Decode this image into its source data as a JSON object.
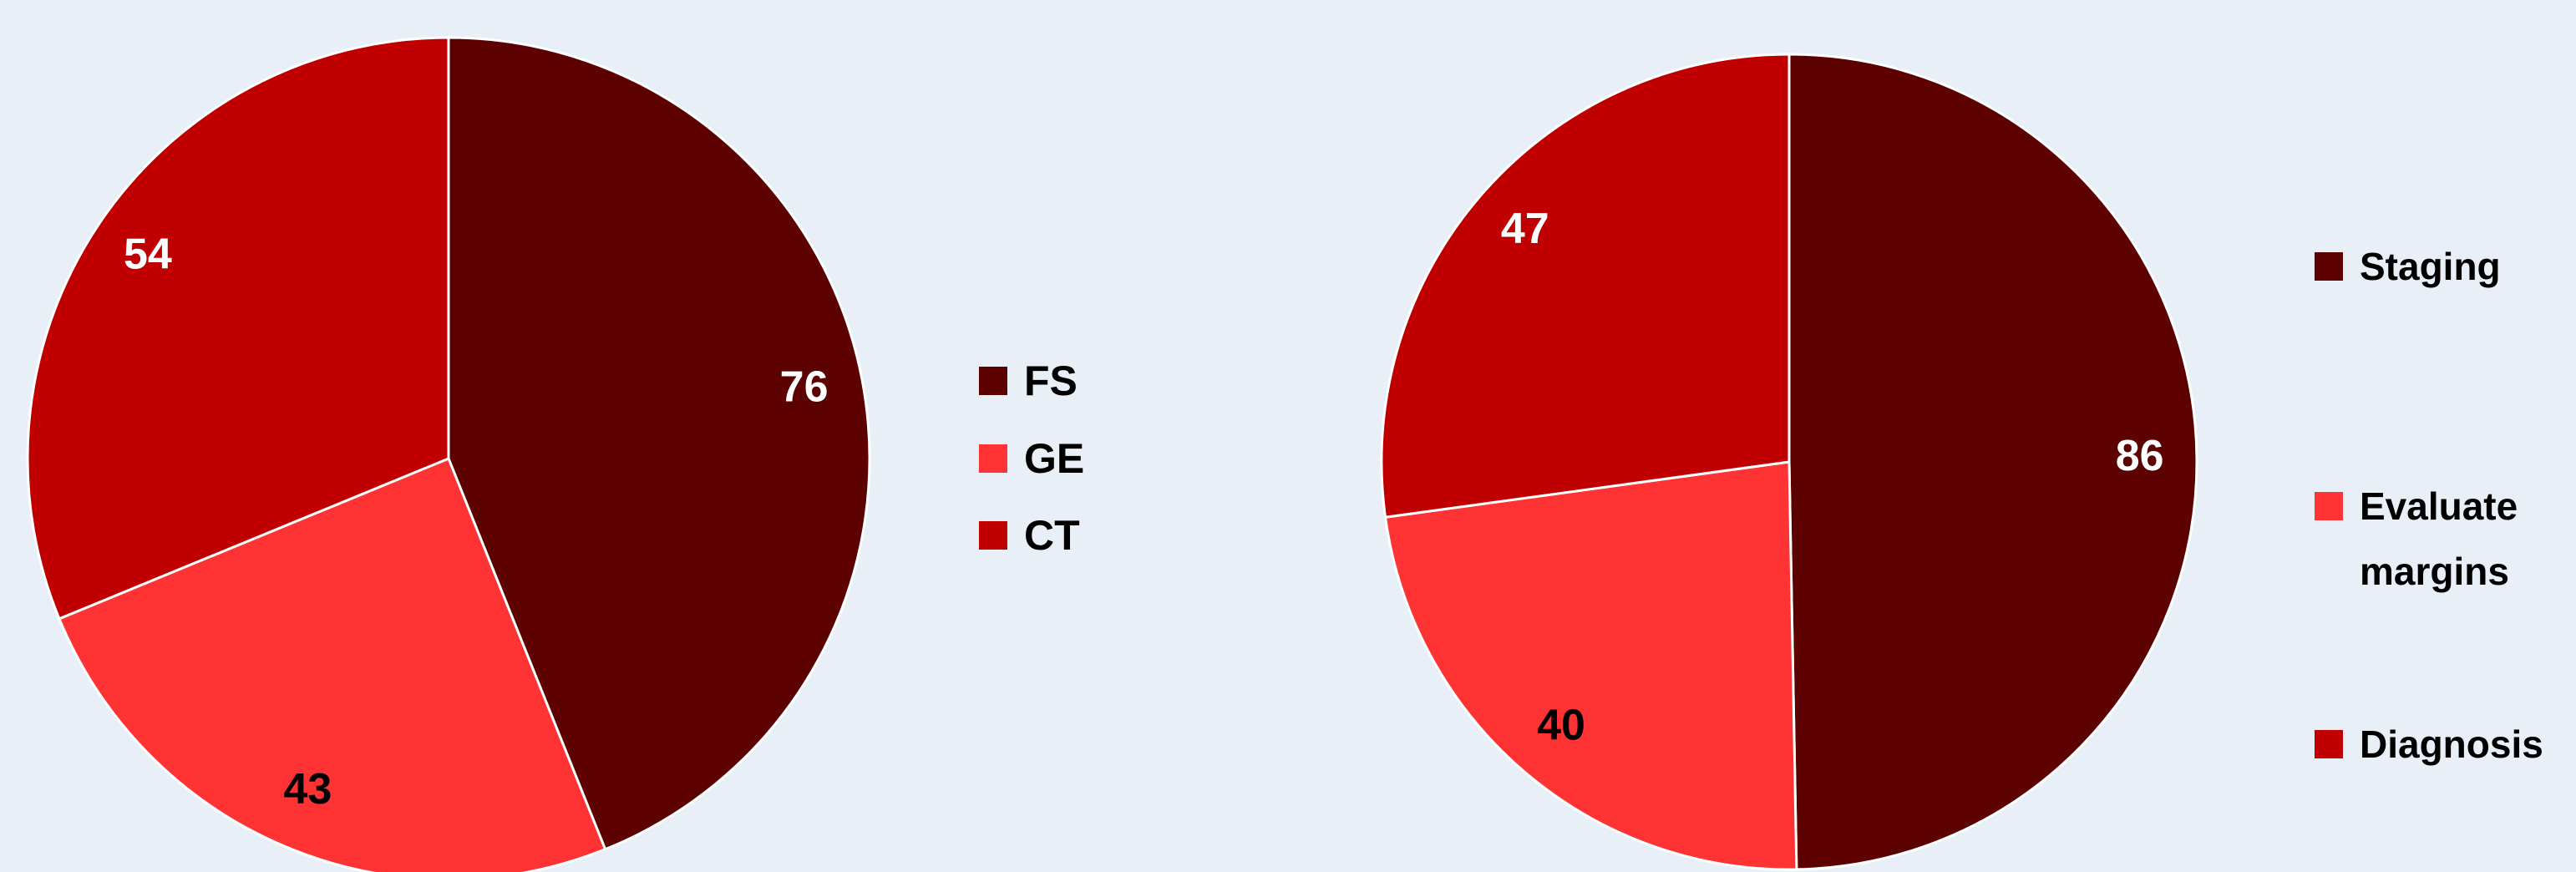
{
  "chart_data": [
    {
      "type": "pie",
      "categories": [
        "FS",
        "GE",
        "CT"
      ],
      "values": [
        76,
        43,
        54
      ],
      "colors": [
        "#5c0000",
        "#ff3333",
        "#c00000"
      ],
      "label_colors": [
        "#ffffff",
        "#000000",
        "#ffffff"
      ],
      "legend": "right"
    },
    {
      "type": "pie",
      "categories": [
        "Staging",
        "Evaluate margins",
        "Diagnosis"
      ],
      "values": [
        86,
        40,
        47
      ],
      "colors": [
        "#5c0000",
        "#ff3333",
        "#c00000"
      ],
      "label_colors": [
        "#ffffff",
        "#000000",
        "#ffffff"
      ],
      "legend": "right"
    }
  ]
}
